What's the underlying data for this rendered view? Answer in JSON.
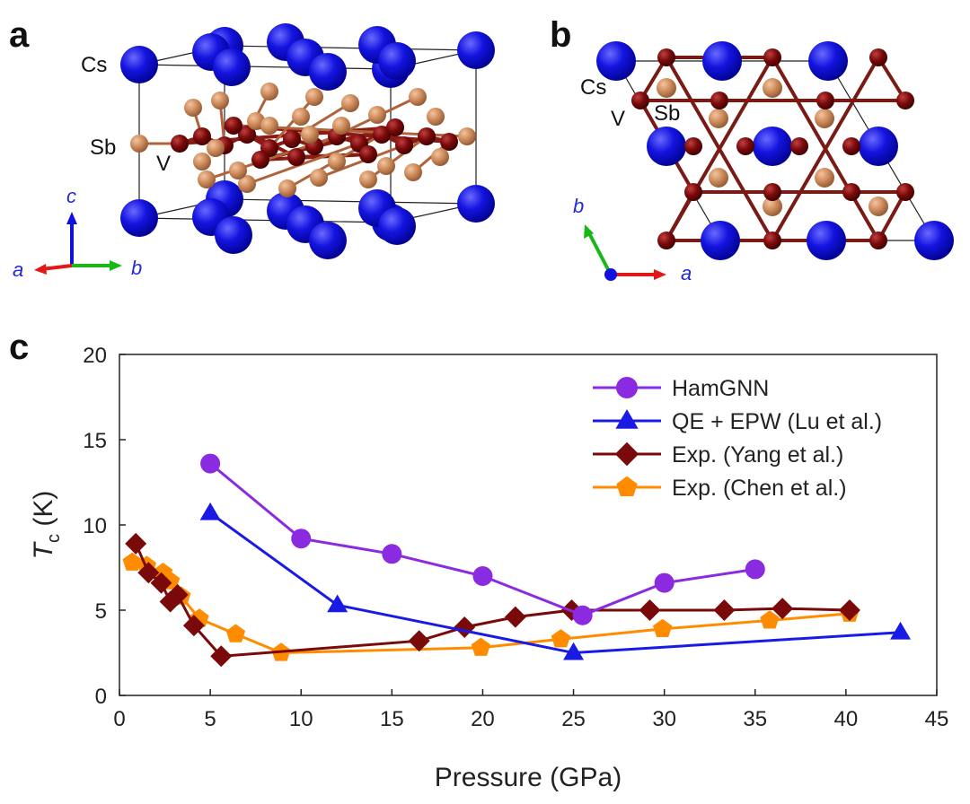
{
  "panels": {
    "a": {
      "letter": "a",
      "labels": {
        "cs": "Cs",
        "sb": "Sb",
        "v": "V"
      },
      "axes": {
        "a": "a",
        "b": "b",
        "c": "c"
      }
    },
    "b": {
      "letter": "b",
      "labels": {
        "cs": "Cs",
        "v": "V",
        "sb": "Sb"
      },
      "axes": {
        "a": "a",
        "b": "b"
      }
    },
    "c": {
      "letter": "c"
    }
  },
  "colors": {
    "cs_atom": "#1010d8",
    "v_atom": "#7a0a0a",
    "sb_atom": "#cd8a5a",
    "axis_a": "#e01818",
    "axis_b": "#18b818",
    "axis_c": "#1010e0"
  },
  "chart_data": {
    "type": "line",
    "title": "",
    "xlabel": "Pressure (GPa)",
    "ylabel_main": "T",
    "ylabel_sub": "c",
    "ylabel_unit": " (K)",
    "xlim": [
      0,
      45
    ],
    "ylim": [
      0,
      20
    ],
    "xticks": [
      0,
      5,
      10,
      15,
      20,
      25,
      30,
      35,
      40,
      45
    ],
    "yticks": [
      0,
      5,
      10,
      15,
      20
    ],
    "grid": false,
    "legend_position": "top-right",
    "series": [
      {
        "name": "HamGNN",
        "color": "#8a2be2",
        "marker": "circle",
        "x": [
          5,
          10,
          15,
          20,
          25.5,
          30,
          35
        ],
        "y": [
          13.6,
          9.2,
          8.3,
          7.0,
          4.7,
          6.6,
          7.4
        ]
      },
      {
        "name": "QE + EPW (Lu et al.)",
        "color": "#1a1ae6",
        "marker": "triangle",
        "x": [
          5,
          12,
          25,
          43
        ],
        "y": [
          10.7,
          5.3,
          2.5,
          3.7
        ]
      },
      {
        "name": "Exp. (Yang et al.)",
        "color": "#7a0a0a",
        "marker": "diamond",
        "x": [
          0.9,
          1.6,
          2.3,
          2.8,
          3.2,
          4.1,
          5.6,
          16.5,
          19.0,
          21.8,
          24.9,
          29.2,
          33.3,
          36.5,
          40.2
        ],
        "y": [
          8.9,
          7.2,
          6.6,
          5.5,
          5.9,
          4.1,
          2.3,
          3.2,
          4.0,
          4.6,
          5.0,
          5.0,
          5.0,
          5.1,
          5.0
        ]
      },
      {
        "name": "Exp. (Chen et al.)",
        "color": "#ff8c00",
        "marker": "pentagon",
        "x": [
          0.7,
          1.5,
          2.4,
          2.8,
          3.4,
          4.4,
          6.4,
          8.9,
          19.9,
          24.3,
          29.9,
          35.8,
          40.2
        ],
        "y": [
          7.8,
          7.6,
          7.2,
          6.7,
          5.8,
          4.5,
          3.6,
          2.5,
          2.8,
          3.3,
          3.9,
          4.4,
          4.8
        ]
      }
    ]
  }
}
